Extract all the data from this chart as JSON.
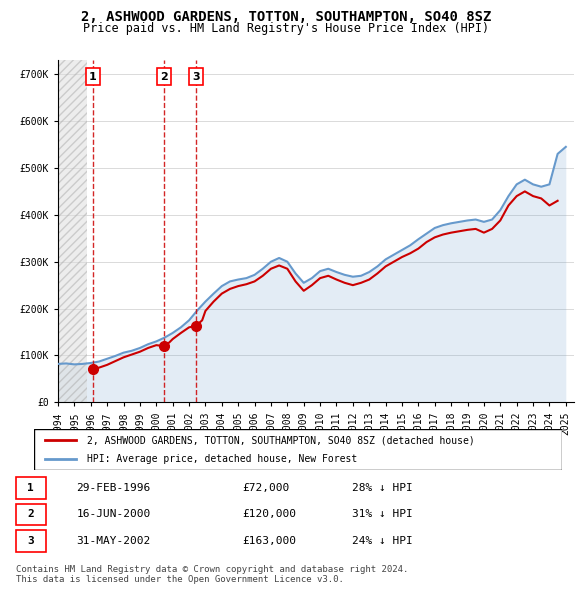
{
  "title": "2, ASHWOOD GARDENS, TOTTON, SOUTHAMPTON, SO40 8SZ",
  "subtitle": "Price paid vs. HM Land Registry's House Price Index (HPI)",
  "legend_house": "2, ASHWOOD GARDENS, TOTTON, SOUTHAMPTON, SO40 8SZ (detached house)",
  "legend_hpi": "HPI: Average price, detached house, New Forest",
  "footer": "Contains HM Land Registry data © Crown copyright and database right 2024.\nThis data is licensed under the Open Government Licence v3.0.",
  "sale_points": [
    {
      "label": "1",
      "date_str": "29-FEB-1996",
      "year": 1996.12,
      "price": 72000,
      "hpi_pct": "28% ↓ HPI"
    },
    {
      "label": "2",
      "date_str": "16-JUN-2000",
      "year": 2000.46,
      "price": 120000,
      "hpi_pct": "31% ↓ HPI"
    },
    {
      "label": "3",
      "date_str": "31-MAY-2002",
      "year": 2002.41,
      "price": 163000,
      "hpi_pct": "24% ↓ HPI"
    }
  ],
  "house_color": "#cc0000",
  "hpi_color": "#6699cc",
  "ylim": [
    0,
    730000
  ],
  "xlim": [
    1994.0,
    2025.5
  ],
  "yticks": [
    0,
    100000,
    200000,
    300000,
    400000,
    500000,
    600000,
    700000
  ],
  "ytick_labels": [
    "£0",
    "£100K",
    "£200K",
    "£300K",
    "£400K",
    "£500K",
    "£600K",
    "£700K"
  ],
  "xticks": [
    1994,
    1995,
    1996,
    1997,
    1998,
    1999,
    2000,
    2001,
    2002,
    2003,
    2004,
    2005,
    2006,
    2007,
    2008,
    2009,
    2010,
    2011,
    2012,
    2013,
    2014,
    2015,
    2016,
    2017,
    2018,
    2019,
    2020,
    2021,
    2022,
    2023,
    2024,
    2025
  ],
  "hpi_data": {
    "years": [
      1994.0,
      1994.5,
      1995.0,
      1995.5,
      1996.0,
      1996.5,
      1997.0,
      1997.5,
      1998.0,
      1998.5,
      1999.0,
      1999.5,
      2000.0,
      2000.5,
      2001.0,
      2001.5,
      2002.0,
      2002.5,
      2003.0,
      2003.5,
      2004.0,
      2004.5,
      2005.0,
      2005.5,
      2006.0,
      2006.5,
      2007.0,
      2007.5,
      2008.0,
      2008.5,
      2009.0,
      2009.5,
      2010.0,
      2010.5,
      2011.0,
      2011.5,
      2012.0,
      2012.5,
      2013.0,
      2013.5,
      2014.0,
      2014.5,
      2015.0,
      2015.5,
      2016.0,
      2016.5,
      2017.0,
      2017.5,
      2018.0,
      2018.5,
      2019.0,
      2019.5,
      2020.0,
      2020.5,
      2021.0,
      2021.5,
      2022.0,
      2022.5,
      2023.0,
      2023.5,
      2024.0,
      2024.5,
      2025.0
    ],
    "values": [
      82000,
      83000,
      81000,
      82000,
      84000,
      87000,
      93000,
      99000,
      106000,
      110000,
      116000,
      124000,
      130000,
      138000,
      148000,
      160000,
      175000,
      196000,
      215000,
      232000,
      248000,
      258000,
      262000,
      265000,
      272000,
      285000,
      300000,
      308000,
      300000,
      275000,
      255000,
      265000,
      280000,
      285000,
      278000,
      272000,
      268000,
      270000,
      278000,
      290000,
      305000,
      315000,
      325000,
      335000,
      348000,
      360000,
      372000,
      378000,
      382000,
      385000,
      388000,
      390000,
      385000,
      390000,
      410000,
      440000,
      465000,
      475000,
      465000,
      460000,
      465000,
      530000,
      545000
    ]
  },
  "house_data": {
    "years": [
      1994.0,
      1994.5,
      1995.0,
      1995.5,
      1996.0,
      1996.12,
      1996.5,
      1997.0,
      1997.5,
      1998.0,
      1998.5,
      1999.0,
      1999.5,
      2000.0,
      2000.46,
      2000.8,
      2001.0,
      2001.5,
      2002.0,
      2002.41,
      2002.8,
      2003.0,
      2003.5,
      2004.0,
      2004.5,
      2005.0,
      2005.5,
      2006.0,
      2006.5,
      2007.0,
      2007.5,
      2008.0,
      2008.5,
      2009.0,
      2009.5,
      2010.0,
      2010.5,
      2011.0,
      2011.5,
      2012.0,
      2012.5,
      2013.0,
      2013.5,
      2014.0,
      2014.5,
      2015.0,
      2015.5,
      2016.0,
      2016.5,
      2017.0,
      2017.5,
      2018.0,
      2018.5,
      2019.0,
      2019.5,
      2020.0,
      2020.5,
      2021.0,
      2021.5,
      2022.0,
      2022.5,
      2023.0,
      2023.5,
      2024.0,
      2024.5
    ],
    "values": [
      null,
      null,
      null,
      null,
      null,
      72000,
      74000,
      80000,
      88000,
      96000,
      102000,
      108000,
      116000,
      122000,
      120000,
      128000,
      135000,
      148000,
      160000,
      163000,
      175000,
      195000,
      215000,
      232000,
      242000,
      248000,
      252000,
      258000,
      270000,
      285000,
      292000,
      285000,
      258000,
      238000,
      250000,
      265000,
      270000,
      262000,
      255000,
      250000,
      255000,
      262000,
      275000,
      290000,
      300000,
      310000,
      318000,
      328000,
      342000,
      352000,
      358000,
      362000,
      365000,
      368000,
      370000,
      362000,
      370000,
      388000,
      420000,
      440000,
      450000,
      440000,
      435000,
      420000,
      430000
    ]
  }
}
